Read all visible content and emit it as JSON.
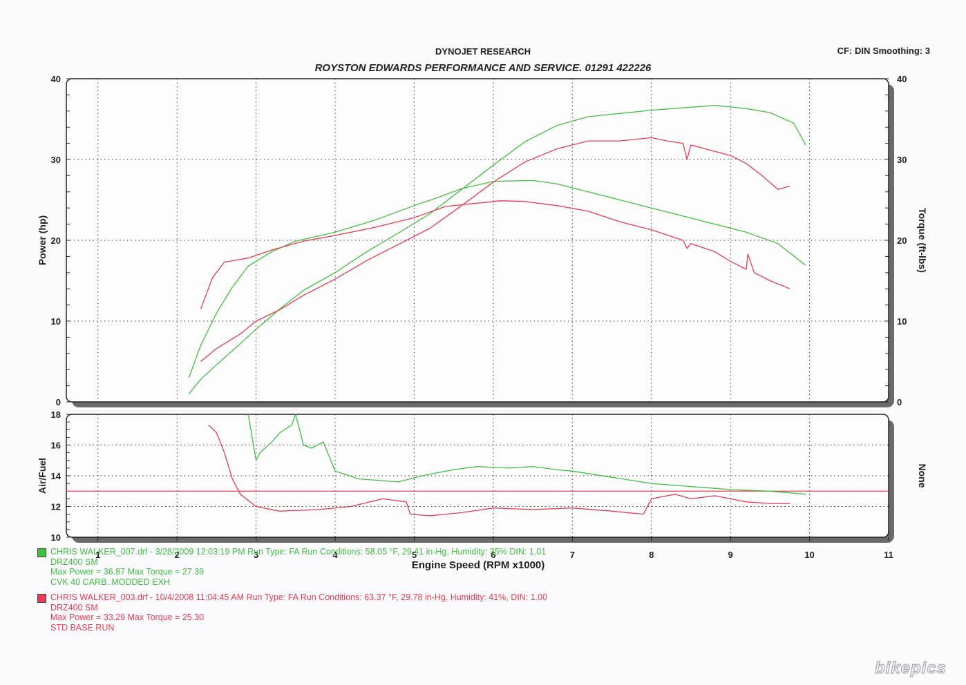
{
  "header": {
    "title": "DYNOJET RESEARCH",
    "subtitle": "ROYSTON EDWARDS PERFORMANCE AND SERVICE.  01291  422226",
    "cf_label": "CF: DIN  Smoothing: 3"
  },
  "chart_data": [
    {
      "type": "line",
      "ylabel": "Power (hp)",
      "ylabel_right": "Torque (ft-lbs)",
      "xlim": [
        0.6,
        11
      ],
      "ylim": [
        0,
        40
      ],
      "xticks": [
        1,
        2,
        3,
        4,
        5,
        6,
        7,
        8,
        9,
        10,
        11
      ],
      "yticks": [
        0,
        10,
        20,
        30,
        40
      ],
      "grid": true,
      "series": [
        {
          "color": "#3fbf3f",
          "role": "power",
          "x": [
            2.15,
            2.3,
            2.5,
            2.8,
            3.0,
            3.3,
            3.6,
            4.0,
            4.4,
            4.8,
            5.2,
            5.6,
            6.0,
            6.4,
            6.8,
            7.2,
            7.6,
            8.0,
            8.4,
            8.8,
            9.0,
            9.2,
            9.5,
            9.8,
            9.95
          ],
          "y": [
            1.0,
            2.8,
            4.6,
            7.2,
            9.0,
            11.5,
            13.8,
            16.0,
            18.6,
            20.9,
            23.3,
            26.3,
            29.3,
            32.2,
            34.2,
            35.3,
            35.7,
            36.1,
            36.4,
            36.7,
            36.5,
            36.3,
            35.8,
            34.5,
            31.8
          ]
        },
        {
          "color": "#3fbf3f",
          "role": "torque",
          "x": [
            2.15,
            2.3,
            2.5,
            2.7,
            2.9,
            3.2,
            3.5,
            4.0,
            4.5,
            5.0,
            5.3,
            5.6,
            6.0,
            6.5,
            6.8,
            7.2,
            7.6,
            8.0,
            8.4,
            8.8,
            9.2,
            9.6,
            9.95
          ],
          "y": [
            3.0,
            7.0,
            11.0,
            14.2,
            16.8,
            18.6,
            19.9,
            21.0,
            22.5,
            24.3,
            25.3,
            26.4,
            27.3,
            27.4,
            27.0,
            26.0,
            25.0,
            24.0,
            23.0,
            22.0,
            21.0,
            19.6,
            16.9
          ]
        },
        {
          "color": "#e83a52",
          "role": "power",
          "x": [
            2.3,
            2.5,
            2.8,
            3.0,
            3.3,
            3.6,
            4.0,
            4.4,
            4.8,
            5.2,
            5.6,
            6.0,
            6.4,
            6.8,
            7.2,
            7.6,
            8.0,
            8.2,
            8.4,
            8.45,
            8.5,
            8.8,
            9.0,
            9.2,
            9.4,
            9.6,
            9.75
          ],
          "y": [
            5.0,
            6.6,
            8.4,
            10.0,
            11.4,
            13.2,
            15.2,
            17.5,
            19.5,
            21.5,
            24.3,
            27.2,
            29.7,
            31.3,
            32.3,
            32.3,
            32.7,
            32.3,
            32.0,
            30.0,
            31.8,
            31.0,
            30.5,
            29.5,
            28.0,
            26.3,
            26.7
          ]
        },
        {
          "color": "#e83a52",
          "role": "torque",
          "x": [
            2.3,
            2.45,
            2.6,
            2.9,
            3.2,
            3.6,
            4.0,
            4.5,
            5.0,
            5.4,
            5.8,
            6.1,
            6.4,
            6.8,
            7.2,
            7.6,
            8.0,
            8.4,
            8.45,
            8.5,
            8.8,
            9.0,
            9.2,
            9.22,
            9.3,
            9.5,
            9.75
          ],
          "y": [
            11.5,
            15.4,
            17.3,
            17.8,
            18.8,
            19.9,
            20.6,
            21.6,
            22.8,
            24.2,
            24.6,
            24.9,
            24.8,
            24.3,
            23.6,
            22.3,
            21.3,
            20.0,
            19.0,
            19.6,
            18.6,
            17.4,
            16.4,
            18.3,
            16.0,
            15.0,
            14.0
          ]
        }
      ]
    },
    {
      "type": "line",
      "ylabel": "Air/Fuel",
      "ylabel_right": "None",
      "xlabel": "Engine Speed (RPM x1000)",
      "xlim": [
        0.6,
        11
      ],
      "ylim": [
        10,
        18
      ],
      "xticks": [
        1,
        2,
        3,
        4,
        5,
        6,
        7,
        8,
        9,
        10,
        11
      ],
      "yticks": [
        10,
        12,
        14,
        16,
        18
      ],
      "grid": true,
      "reference_line": 13.0,
      "series": [
        {
          "color": "#3fbf3f",
          "x": [
            2.9,
            3.0,
            3.05,
            3.2,
            3.3,
            3.45,
            3.5,
            3.6,
            3.7,
            3.85,
            4.0,
            4.3,
            4.8,
            5.1,
            5.5,
            5.8,
            6.2,
            6.5,
            6.8,
            7.0,
            7.5,
            8.0,
            8.5,
            9.0,
            9.5,
            9.95
          ],
          "y": [
            18.0,
            15.0,
            15.5,
            16.2,
            16.8,
            17.3,
            18.0,
            16.0,
            15.8,
            16.2,
            14.3,
            13.8,
            13.6,
            14.0,
            14.4,
            14.6,
            14.5,
            14.6,
            14.4,
            14.3,
            13.9,
            13.5,
            13.3,
            13.1,
            13.0,
            12.8
          ]
        },
        {
          "color": "#e83a52",
          "x": [
            2.4,
            2.5,
            2.6,
            2.7,
            2.8,
            3.0,
            3.3,
            3.8,
            4.2,
            4.6,
            4.9,
            4.95,
            5.2,
            5.6,
            6.0,
            6.5,
            7.0,
            7.5,
            7.9,
            8.0,
            8.3,
            8.5,
            8.8,
            9.0,
            9.2,
            9.5,
            9.75
          ],
          "y": [
            17.3,
            16.8,
            15.5,
            13.8,
            12.8,
            12.0,
            11.7,
            11.8,
            12.0,
            12.5,
            12.3,
            11.5,
            11.4,
            11.6,
            11.9,
            11.8,
            11.9,
            11.7,
            11.5,
            12.5,
            12.8,
            12.5,
            12.7,
            12.5,
            12.3,
            12.2,
            12.2
          ]
        }
      ]
    }
  ],
  "legend": [
    {
      "color": "#3fbf3f",
      "text_color": "#3fbf3f",
      "lines": [
        "CHRIS WALKER_007.drf - 3/28/2009 12:03:19 PM  Run Type: FA  Run Conditions: 58.05 °F, 29.41 in-Hg,  Humidity:  35%  DIN: 1.01",
        "DRZ400 SM",
        "Max Power = 36.87  Max Torque = 27.39",
        "CVK 40 CARB..MODDED EXH"
      ]
    },
    {
      "color": "#e83a52",
      "text_color": "#e83a52",
      "lines": [
        "CHRIS WALKER_003.drf - 10/4/2008 11:04:45 AM  Run Type: FA  Run Conditions: 63.37 °F, 29.78 in-Hg,  Humidity:  41%, DIN: 1.00",
        "DRZ400 SM",
        "Max Power = 33.29  Max Torque = 25.30",
        "STD BASE RUN"
      ]
    }
  ],
  "watermark": "bikepics"
}
